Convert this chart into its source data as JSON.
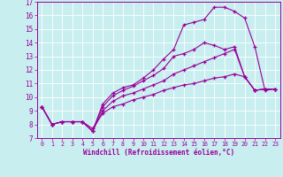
{
  "xlabel": "Windchill (Refroidissement éolien,°C)",
  "bg_color": "#c8eef0",
  "line_color": "#990099",
  "xlim": [
    0,
    23
  ],
  "ylim": [
    7,
    17
  ],
  "xticks": [
    0,
    1,
    2,
    3,
    4,
    5,
    6,
    7,
    8,
    9,
    10,
    11,
    12,
    13,
    14,
    15,
    16,
    17,
    18,
    19,
    20,
    21,
    22,
    23
  ],
  "yticks": [
    7,
    8,
    9,
    10,
    11,
    12,
    13,
    14,
    15,
    16,
    17
  ],
  "line1_x": [
    0,
    1,
    2,
    3,
    4,
    5,
    6,
    7,
    8,
    9,
    10,
    11,
    12,
    13,
    14,
    15,
    16,
    17,
    18,
    19,
    20,
    21,
    22,
    23
  ],
  "line1_y": [
    9.3,
    8.0,
    8.2,
    8.2,
    8.2,
    7.5,
    9.5,
    10.3,
    10.7,
    10.9,
    11.4,
    12.0,
    12.8,
    13.5,
    15.3,
    15.5,
    15.7,
    16.6,
    16.6,
    16.3,
    15.8,
    13.7,
    10.5,
    10.6
  ],
  "line2_x": [
    0,
    1,
    2,
    3,
    4,
    5,
    6,
    7,
    8,
    9,
    10,
    11,
    12,
    13,
    14,
    15,
    16,
    17,
    18,
    19,
    20,
    21,
    22,
    23
  ],
  "line2_y": [
    9.3,
    8.0,
    8.2,
    8.2,
    8.2,
    7.5,
    9.3,
    10.1,
    10.5,
    10.8,
    11.2,
    11.6,
    12.1,
    13.0,
    13.2,
    13.5,
    14.0,
    13.8,
    13.5,
    13.7,
    11.5,
    10.5,
    10.6,
    10.6
  ],
  "line3_x": [
    0,
    1,
    2,
    3,
    4,
    5,
    6,
    7,
    8,
    9,
    10,
    11,
    12,
    13,
    14,
    15,
    16,
    17,
    18,
    19,
    20,
    21,
    22,
    23
  ],
  "line3_y": [
    9.3,
    8.0,
    8.2,
    8.2,
    8.2,
    7.5,
    9.0,
    9.7,
    10.1,
    10.3,
    10.6,
    10.9,
    11.2,
    11.7,
    12.0,
    12.3,
    12.6,
    12.9,
    13.2,
    13.5,
    11.5,
    10.5,
    10.6,
    10.6
  ],
  "line4_x": [
    0,
    1,
    2,
    3,
    4,
    5,
    6,
    7,
    8,
    9,
    10,
    11,
    12,
    13,
    14,
    15,
    16,
    17,
    18,
    19,
    20,
    21,
    22,
    23
  ],
  "line4_y": [
    9.3,
    8.0,
    8.2,
    8.2,
    8.2,
    7.7,
    8.8,
    9.3,
    9.5,
    9.8,
    10.0,
    10.2,
    10.5,
    10.7,
    10.9,
    11.0,
    11.2,
    11.4,
    11.5,
    11.7,
    11.5,
    10.5,
    10.6,
    10.6
  ]
}
